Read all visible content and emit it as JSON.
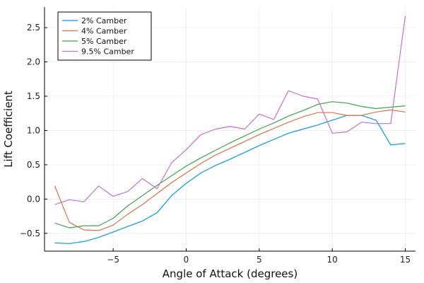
{
  "chart_data": {
    "type": "line",
    "title": "",
    "xlabel": "Angle of Attack (degrees)",
    "ylabel": "Lift Coefficient",
    "xlim": [
      -9.7,
      15.7
    ],
    "ylim": [
      -0.76,
      2.8
    ],
    "xticks": [
      -5,
      0,
      5,
      10,
      15
    ],
    "xtick_labels": [
      "−5",
      "0",
      "5",
      "10",
      "15"
    ],
    "yticks": [
      -0.5,
      0.0,
      0.5,
      1.0,
      1.5,
      2.0,
      2.5
    ],
    "ytick_labels": [
      "−0.5",
      "0.0",
      "0.5",
      "1.0",
      "1.5",
      "2.0",
      "2.5"
    ],
    "grid": true,
    "legend_position": "top-left",
    "x": [
      -9,
      -8,
      -7,
      -6,
      -5,
      -4,
      -3,
      -2,
      -1,
      0,
      1,
      2,
      3,
      4,
      5,
      6,
      7,
      8,
      9,
      10,
      11,
      12,
      13,
      14,
      15
    ],
    "series": [
      {
        "name": "2% Camber",
        "color": "#009AFA",
        "values": [
          -0.64,
          -0.65,
          -0.62,
          -0.56,
          -0.48,
          -0.4,
          -0.32,
          -0.2,
          0.05,
          0.23,
          0.38,
          0.49,
          0.58,
          0.68,
          0.78,
          0.87,
          0.96,
          1.02,
          1.08,
          1.15,
          1.22,
          1.22,
          1.15,
          0.79,
          0.81
        ]
      },
      {
        "name": "4% Camber",
        "color": "#E36F47",
        "values": [
          0.19,
          -0.34,
          -0.45,
          -0.46,
          -0.38,
          -0.22,
          -0.08,
          0.08,
          0.24,
          0.38,
          0.52,
          0.64,
          0.74,
          0.84,
          0.94,
          1.03,
          1.12,
          1.2,
          1.26,
          1.26,
          1.22,
          1.22,
          1.27,
          1.3,
          1.27
        ]
      },
      {
        "name": "5% Camber",
        "color": "#3EA44E",
        "values": [
          -0.35,
          -0.42,
          -0.39,
          -0.39,
          -0.28,
          -0.1,
          0.05,
          0.2,
          0.34,
          0.48,
          0.6,
          0.71,
          0.82,
          0.92,
          1.02,
          1.11,
          1.21,
          1.29,
          1.38,
          1.42,
          1.4,
          1.35,
          1.32,
          1.34,
          1.36
        ]
      },
      {
        "name": "9.5% Camber",
        "color": "#C271D2",
        "values": [
          -0.08,
          -0.01,
          -0.04,
          0.19,
          0.04,
          0.11,
          0.3,
          0.15,
          0.53,
          0.72,
          0.94,
          1.02,
          1.06,
          1.02,
          1.24,
          1.16,
          1.58,
          1.5,
          1.46,
          0.96,
          0.98,
          1.12,
          1.1,
          1.1,
          2.67
        ]
      }
    ]
  }
}
